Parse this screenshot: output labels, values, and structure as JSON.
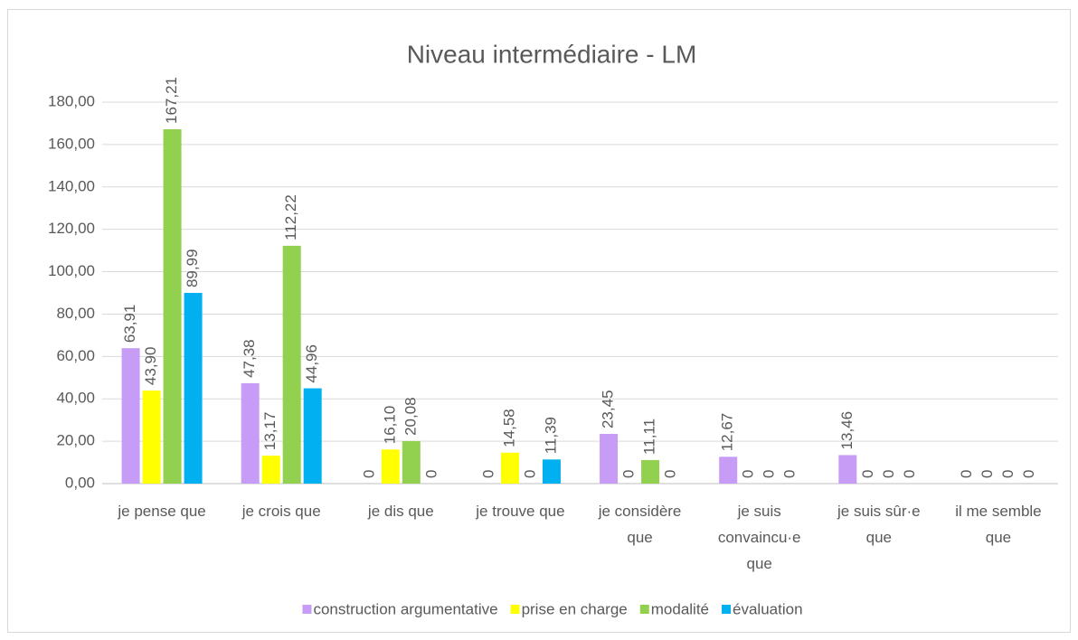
{
  "chart_data": {
    "type": "bar",
    "title": "Niveau intermédiaire - LM",
    "categories": [
      "je pense que",
      "je crois que",
      "je dis que",
      "je trouve que",
      "je considère que",
      "je suis convaincu·e que",
      "je suis sûr·e que",
      "il me semble que"
    ],
    "series": [
      {
        "name": "construction argumentative",
        "color": "#c79cf7",
        "values": [
          63.91,
          47.38,
          0,
          0,
          23.45,
          12.67,
          13.46,
          0
        ],
        "value_labels": [
          "63,91",
          "47,38",
          "0",
          "0",
          "23,45",
          "12,67",
          "13,46",
          "0"
        ]
      },
      {
        "name": "prise en charge",
        "color": "#ffff00",
        "values": [
          43.9,
          13.17,
          16.1,
          14.58,
          0,
          0,
          0,
          0
        ],
        "value_labels": [
          "43,90",
          "13,17",
          "16,10",
          "14,58",
          "0",
          "0",
          "0",
          "0"
        ]
      },
      {
        "name": "modalité",
        "color": "#92d050",
        "values": [
          167.21,
          112.22,
          20.08,
          0,
          11.11,
          0,
          0,
          0
        ],
        "value_labels": [
          "167,21",
          "112,22",
          "20,08",
          "0",
          "11,11",
          "0",
          "0",
          "0"
        ]
      },
      {
        "name": "évaluation",
        "color": "#00b0f0",
        "values": [
          89.99,
          44.96,
          0,
          11.39,
          0,
          0,
          0,
          0
        ],
        "value_labels": [
          "89,99",
          "44,96",
          "0",
          "11,39",
          "0",
          "0",
          "0",
          "0"
        ]
      }
    ],
    "ylim": [
      0,
      180
    ],
    "yticks": [
      {
        "value": 0,
        "label": "0,00"
      },
      {
        "value": 20,
        "label": "20,00"
      },
      {
        "value": 40,
        "label": "40,00"
      },
      {
        "value": 60,
        "label": "60,00"
      },
      {
        "value": 80,
        "label": "80,00"
      },
      {
        "value": 100,
        "label": "100,00"
      },
      {
        "value": 120,
        "label": "120,00"
      },
      {
        "value": 140,
        "label": "140,00"
      },
      {
        "value": 160,
        "label": "160,00"
      },
      {
        "value": 180,
        "label": "180,00"
      }
    ],
    "grid": true,
    "legend": "bottom"
  }
}
